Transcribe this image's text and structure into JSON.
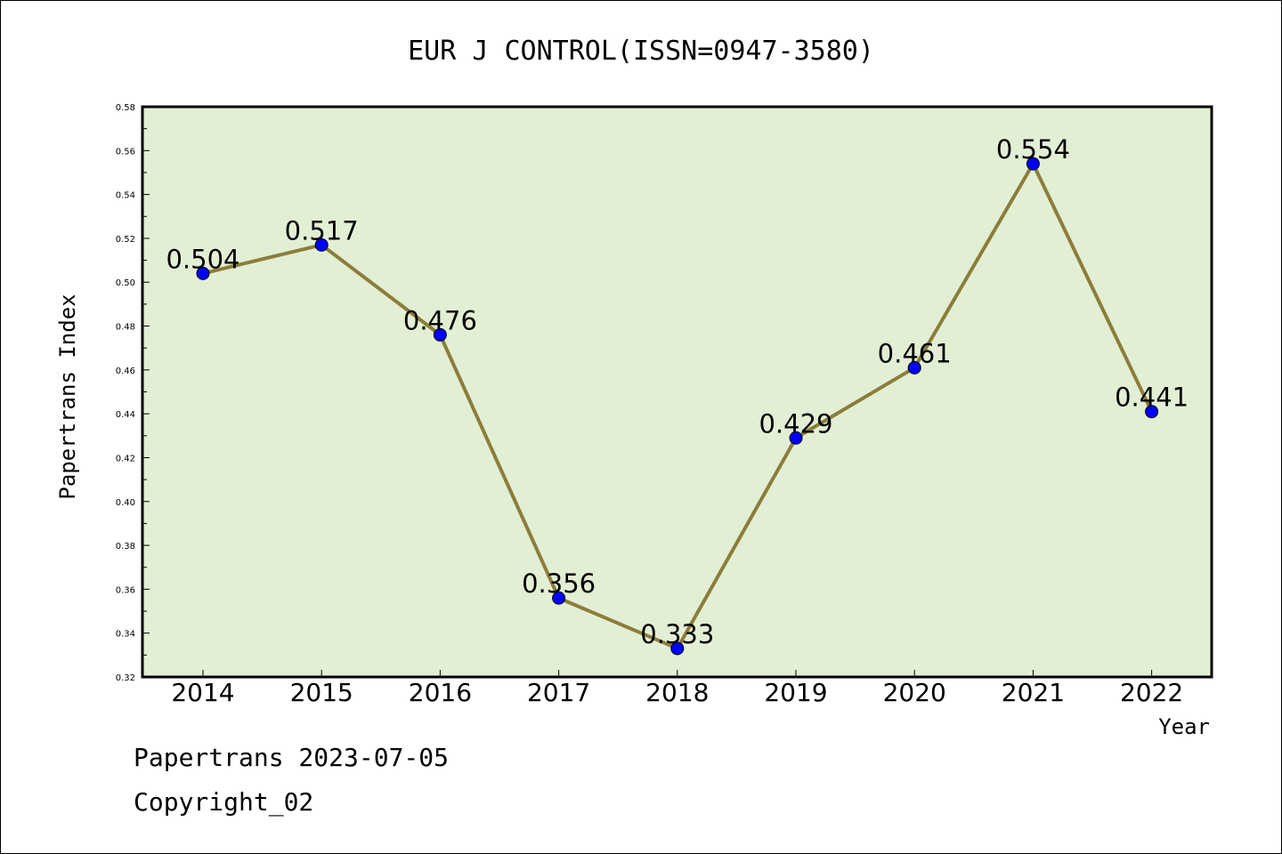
{
  "chart_data": {
    "type": "line",
    "title": "EUR J CONTROL(ISSN=0947-3580)",
    "xlabel": "Year",
    "ylabel": "Papertrans Index",
    "categories": [
      "2014",
      "2015",
      "2016",
      "2017",
      "2018",
      "2019",
      "2020",
      "2021",
      "2022"
    ],
    "series": [
      {
        "values": [
          0.504,
          0.517,
          0.476,
          0.356,
          0.333,
          0.429,
          0.461,
          0.554,
          0.441
        ]
      }
    ],
    "data_labels": [
      "0.504",
      "0.517",
      "0.476",
      "0.356",
      "0.333",
      "0.429",
      "0.461",
      "0.554",
      "0.441"
    ],
    "ylim": [
      0.32,
      0.58
    ],
    "yticks": [
      "0.32",
      "0.34",
      "0.36",
      "0.38",
      "0.40",
      "0.42",
      "0.44",
      "0.46",
      "0.48",
      "0.50",
      "0.52",
      "0.54",
      "0.56",
      "0.58"
    ],
    "grid": false,
    "colors": {
      "plot_bg": "#e2efd4",
      "line": "#8b7d3a",
      "marker": "#0000ff"
    }
  },
  "footer": {
    "line1": "Papertrans 2023-07-05",
    "line2": "Copyright_02"
  }
}
